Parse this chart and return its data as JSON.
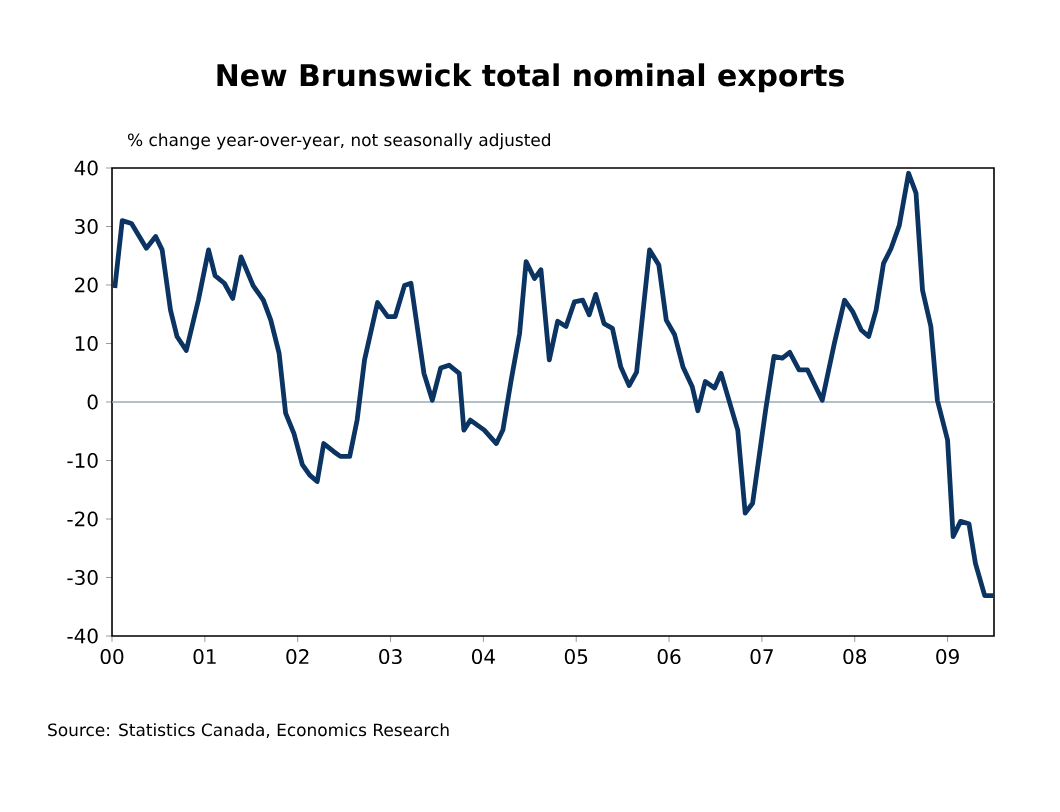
{
  "chart_data": {
    "type": "line",
    "title": "New Brunswick total nominal exports",
    "subtitle": "% change year-over-year, not seasonally adjusted",
    "annotations": [
      "Source: Statistics Canada, Economics Research"
    ],
    "x": [
      2000.03,
      2000.11,
      2000.21,
      2000.37,
      2000.47,
      2000.54,
      2000.63,
      2000.7,
      2000.8,
      2000.93,
      2001.04,
      2001.11,
      2001.21,
      2001.3,
      2001.39,
      2001.52,
      2001.63,
      2001.71,
      2001.8,
      2001.87,
      2001.96,
      2002.05,
      2002.13,
      2002.21,
      2002.28,
      2002.39,
      2002.46,
      2002.56,
      2002.64,
      2002.72,
      2002.86,
      2002.97,
      2003.05,
      2003.15,
      2003.22,
      2003.36,
      2003.45,
      2003.54,
      2003.63,
      2003.74,
      2003.79,
      2003.86,
      2004.01,
      2004.14,
      2004.21,
      2004.3,
      2004.39,
      2004.46,
      2004.55,
      2004.62,
      2004.71,
      2004.8,
      2004.89,
      2004.98,
      2005.07,
      2005.14,
      2005.21,
      2005.3,
      2005.39,
      2005.48,
      2005.57,
      2005.65,
      2005.79,
      2005.89,
      2005.97,
      2006.06,
      2006.15,
      2006.25,
      2006.31,
      2006.39,
      2006.49,
      2006.56,
      2006.74,
      2006.82,
      2006.9,
      2007.04,
      2007.13,
      2007.22,
      2007.3,
      2007.4,
      2007.49,
      2007.65,
      2007.78,
      2007.89,
      2007.98,
      2008.07,
      2008.15,
      2008.23,
      2008.31,
      2008.39,
      2008.48,
      2008.58,
      2008.66,
      2008.73,
      2008.82,
      2008.89,
      2009.0,
      2009.06,
      2009.14,
      2009.23,
      2009.3,
      2009.4,
      2009.49
    ],
    "series": [
      {
        "color": "#0b3462",
        "values": [
          19.5,
          31,
          30.5,
          26.3,
          28.3,
          26,
          15.7,
          11.2,
          8.8,
          17.4,
          26,
          21.6,
          20.3,
          17.7,
          24.8,
          19.9,
          17.4,
          14,
          8.3,
          -1.9,
          -5.4,
          -10.7,
          -12.5,
          -13.6,
          -7.1,
          -8.5,
          -9.3,
          -9.3,
          -3.1,
          7.2,
          17,
          14.6,
          14.6,
          19.9,
          20.3,
          4.9,
          0.3,
          5.8,
          6.3,
          4.9,
          -4.8,
          -3.1,
          -4.8,
          -7.1,
          -4.8,
          3.8,
          11.7,
          24,
          21.1,
          22.6,
          7.2,
          13.8,
          12.9,
          17.1,
          17.4,
          14.9,
          18.4,
          13.4,
          12.6,
          6,
          2.8,
          5.1,
          26,
          23.4,
          14,
          11.5,
          6,
          2.6,
          -1.5,
          3.5,
          2.4,
          4.9,
          -4.8,
          -19,
          -17.3,
          -1.4,
          7.8,
          7.5,
          8.5,
          5.5,
          5.5,
          0.3,
          10,
          17.4,
          15.4,
          12.3,
          11.2,
          15.7,
          23.7,
          26.2,
          30.2,
          39.1,
          35.7,
          19.1,
          12.9,
          0.3,
          -6.5,
          -23,
          -20.4,
          -20.8,
          -27.6,
          -33.1,
          -33.1
        ]
      }
    ],
    "xlim": [
      2000,
      2009.5
    ],
    "xticks": [
      {
        "value": 2000,
        "label": "00"
      },
      {
        "value": 2001,
        "label": "01"
      },
      {
        "value": 2002,
        "label": "02"
      },
      {
        "value": 2003,
        "label": "03"
      },
      {
        "value": 2004,
        "label": "04"
      },
      {
        "value": 2005,
        "label": "05"
      },
      {
        "value": 2006,
        "label": "06"
      },
      {
        "value": 2007,
        "label": "07"
      },
      {
        "value": 2008,
        "label": "08"
      },
      {
        "value": 2009,
        "label": "09"
      }
    ],
    "ylim": [
      -40,
      40
    ],
    "yticks": [
      -40,
      -30,
      -20,
      -10,
      0,
      10,
      20,
      30,
      40
    ],
    "ref_lines": [
      {
        "axis": "y",
        "value": 0,
        "color": "#9aabb6"
      }
    ],
    "grid": false,
    "legend": false,
    "marker": "none",
    "line_style": "solid"
  }
}
